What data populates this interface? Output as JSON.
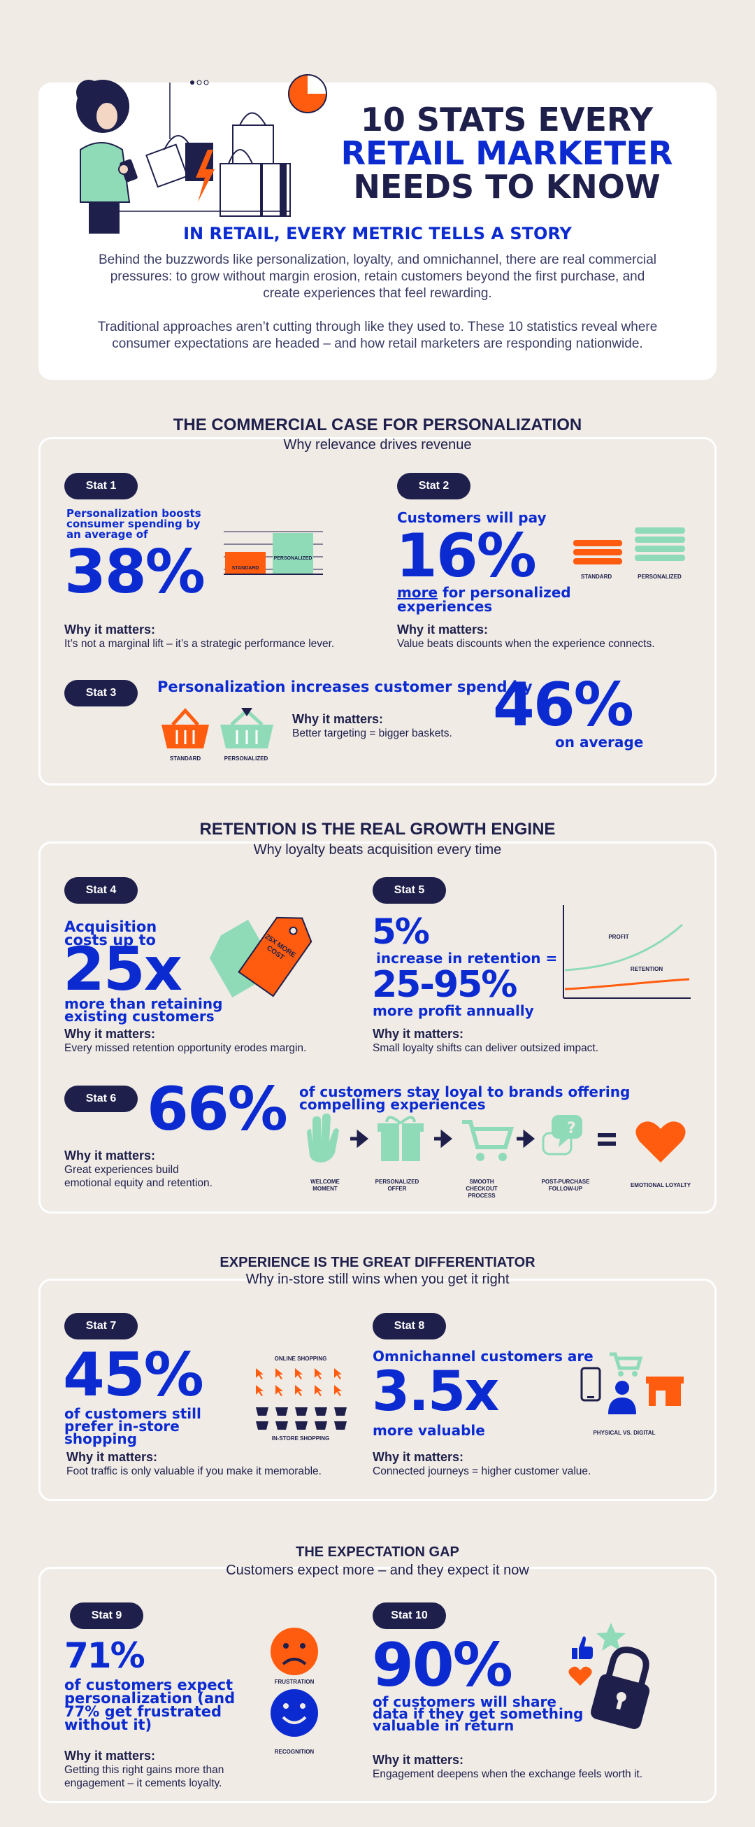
{
  "hero": {
    "title_line1": "10 STATS EVERY",
    "title_line2": "RETAIL MARKETER",
    "title_line3": "NEEDS TO KNOW",
    "subtitle": "IN RETAIL, EVERY METRIC TELLS A STORY",
    "para1": "Behind the buzzwords like personalization, loyalty, and omnichannel, there are real commercial pressures: to grow without margin erosion, retain customers beyond the first purchase, and create experiences that feel rewarding.",
    "para2": "Traditional approaches aren’t cutting through like they used to. These 10 statistics reveal where consumer expectations are headed – and how retail marketers are responding nationwide."
  },
  "sections": [
    {
      "title": "THE COMMERCIAL CASE FOR PERSONALIZATION",
      "subtitle": "Why relevance drives revenue"
    },
    {
      "title": "RETENTION IS THE REAL GROWTH ENGINE",
      "subtitle": "Why loyalty beats acquisition every time"
    },
    {
      "title": "EXPERIENCE IS THE GREAT DIFFERENTIATOR",
      "subtitle": "Why in-store still wins when you get it right"
    },
    {
      "title": "THE EXPECTATION GAP",
      "subtitle": "Customers expect more – and they expect it now"
    }
  ],
  "why_label": "Why it matters:",
  "stats": {
    "s1": {
      "pill": "Stat 1",
      "lead": "Personalization boosts consumer spending by an average of",
      "big": "38%",
      "why": "It’s not a marginal lift – it’s a strategic performance lever.",
      "bar_standard": "STANDARD",
      "bar_personalized": "PERSONALIZED",
      "standard_level": 0.55,
      "personalized_level": 0.85
    },
    "s2": {
      "pill": "Stat 2",
      "lead": "Customers will pay",
      "big": "16%",
      "more": "more",
      "rest": " for personalized experiences",
      "why": "Value beats discounts when the experience connects.",
      "icon_standard": "STANDARD",
      "icon_personalized": "PERSONALIZED"
    },
    "s3": {
      "pill": "Stat 3",
      "lead": "Personalization increases customer spend by",
      "big": "46%",
      "tail": "on average",
      "why": "Better targeting = bigger baskets.",
      "icon_standard": "STANDARD",
      "icon_personalized": "PERSONALIZED"
    },
    "s4": {
      "pill": "Stat 4",
      "lead": "Acquisition costs up to",
      "big": "25x",
      "tail": "more than retaining existing customers",
      "tag": "25X MORE COST",
      "why": "Every missed retention opportunity erodes margin."
    },
    "s5": {
      "pill": "Stat 5",
      "big1": "5%",
      "mid": "increase in retention =",
      "big2": "25-95%",
      "tail": "more profit annually",
      "why": "Small loyalty shifts can deliver outsized impact.",
      "line_profit": "PROFIT",
      "line_retention": "RETENTION"
    },
    "s6": {
      "pill": "Stat 6",
      "big": "66%",
      "lead": "of customers stay loyal to brands offering compelling experiences",
      "why": "Great experiences build emotional equity and retention.",
      "steps": [
        "WELCOME MOMENT",
        "PERSONALIZED OFFER",
        "SMOOTH CHECKOUT PROCESS",
        "POST-PURCHASE FOLLOW-UP"
      ],
      "result": "EMOTIONAL LOYALTY"
    },
    "s7": {
      "pill": "Stat 7",
      "big": "45%",
      "tail": "of customers still prefer in-store shopping",
      "why": "Foot traffic is only valuable if you make it memorable.",
      "online": "ONLINE SHOPPING",
      "instore": "IN-STORE SHOPPING"
    },
    "s8": {
      "pill": "Stat 8",
      "lead": "Omnichannel customers are",
      "big": "3.5x",
      "tail": "more valuable",
      "why": "Connected journeys = higher customer value.",
      "icon_label": "PHYSICAL VS. DIGITAL"
    },
    "s9": {
      "pill": "Stat 9",
      "big": "71%",
      "tail": "of customers expect personalization (and 77% get frustrated without it)",
      "why": "Getting this right gains more than engagement – it cements loyalty.",
      "frustration": "FRUSTRATION",
      "recognition": "RECOGNITION"
    },
    "s10": {
      "pill": "Stat 10",
      "big": "90%",
      "tail": "of customers will share data if they get something valuable in return",
      "why": "Engagement deepens when the exchange feels worth it."
    }
  },
  "colors": {
    "navy": "#1e1f4b",
    "blue": "#0b2bd1",
    "orange": "#ff5c0f",
    "mint": "#8fdbb8",
    "bg": "#f0ebe5"
  }
}
